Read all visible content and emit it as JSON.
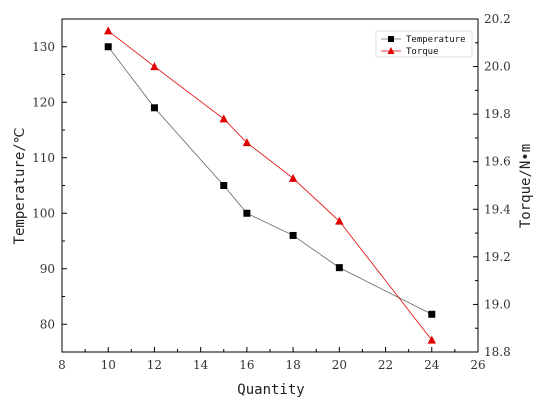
{
  "chart_data": {
    "type": "line",
    "x": [
      10,
      12,
      15,
      16,
      18,
      20,
      24
    ],
    "xlabel": "Quantity",
    "xlim": [
      8,
      26
    ],
    "xticks": [
      8,
      10,
      12,
      14,
      16,
      18,
      20,
      22,
      24,
      26
    ],
    "ylabel_left": "Temperature/℃",
    "ylim_left": [
      75,
      135
    ],
    "yticks_left": [
      80,
      90,
      100,
      110,
      120,
      130
    ],
    "ylabel_right": "Torque/N•m",
    "ylim_right": [
      18.8,
      20.2
    ],
    "yticks_right": [
      "18.8",
      "19.0",
      "19.2",
      "19.4",
      "19.6",
      "19.8",
      "20.0",
      "20.2"
    ],
    "legend_position": "top-right",
    "grid": false,
    "series": [
      {
        "name": "Temperature",
        "axis": "left",
        "marker": "square",
        "color": "#000000",
        "line_color": "#666666",
        "values": [
          130,
          119,
          105,
          100,
          96,
          90.2,
          81.8
        ]
      },
      {
        "name": "Torque",
        "axis": "right",
        "marker": "triangle",
        "color": "#e00000",
        "line_color": "#e00000",
        "values": [
          20.15,
          20.0,
          19.78,
          19.68,
          19.53,
          19.35,
          18.85
        ]
      }
    ]
  }
}
